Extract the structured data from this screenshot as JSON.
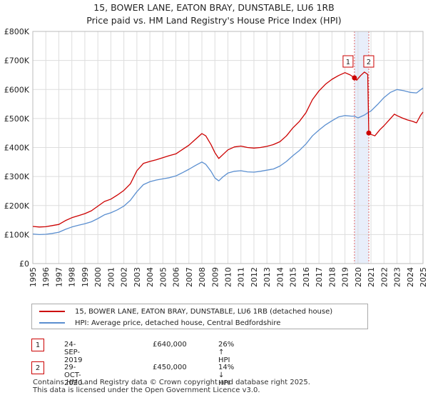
{
  "title_line1": "15, BOWER LANE, EATON BRAY, DUNSTABLE, LU6 1RB",
  "title_line2": "Price paid vs. HM Land Registry's House Price Index (HPI)",
  "colors": {
    "property": "#cc0000",
    "hpi": "#5b8fd0",
    "shade": "#e8eefa",
    "grid": "#dddddd"
  },
  "legend": {
    "property_label": "15, BOWER LANE, EATON BRAY, DUNSTABLE, LU6 1RB (detached house)",
    "hpi_label": "HPI: Average price, detached house, Central Bedfordshire"
  },
  "transactions": [
    {
      "num": "1",
      "date": "24-SEP-2019",
      "price": "£640,000",
      "hpi": "26% ↑ HPI"
    },
    {
      "num": "2",
      "date": "29-OCT-2020",
      "price": "£450,000",
      "hpi": "14% ↓ HPI"
    }
  ],
  "footer_line1": "Contains HM Land Registry data © Crown copyright and database right 2025.",
  "footer_line2": "This data is licensed under the Open Government Licence v3.0.",
  "chart_data": {
    "type": "line",
    "title": "15, BOWER LANE, EATON BRAY, DUNSTABLE, LU6 1RB — Price paid vs. HM Land Registry's House Price Index (HPI)",
    "xlabel": "",
    "ylabel": "",
    "xlim": [
      1995,
      2025
    ],
    "ylim": [
      0,
      800000
    ],
    "y_ticks": [
      {
        "value": 0,
        "label": "£0"
      },
      {
        "value": 100000,
        "label": "£100K"
      },
      {
        "value": 200000,
        "label": "£200K"
      },
      {
        "value": 300000,
        "label": "£300K"
      },
      {
        "value": 400000,
        "label": "£400K"
      },
      {
        "value": 500000,
        "label": "£500K"
      },
      {
        "value": 600000,
        "label": "£600K"
      },
      {
        "value": 700000,
        "label": "£700K"
      },
      {
        "value": 800000,
        "label": "£800K"
      }
    ],
    "x_ticks": [
      "1995",
      "1996",
      "1997",
      "1998",
      "1999",
      "2000",
      "2001",
      "2002",
      "2003",
      "2004",
      "2005",
      "2006",
      "2007",
      "2008",
      "2009",
      "2010",
      "2011",
      "2012",
      "2013",
      "2014",
      "2015",
      "2016",
      "2017",
      "2018",
      "2019",
      "2020",
      "2021",
      "2022",
      "2023",
      "2024",
      "2025"
    ],
    "grid": true,
    "shaded_ranges": [
      [
        2019.73,
        2020.83
      ]
    ],
    "series": [
      {
        "name": "15, BOWER LANE, EATON BRAY, DUNSTABLE, LU6 1RB (detached house)",
        "color": "#cc0000",
        "points": [
          [
            1995.0,
            128000
          ],
          [
            1995.5,
            126000
          ],
          [
            1996.0,
            127000
          ],
          [
            1996.5,
            131000
          ],
          [
            1997.0,
            135000
          ],
          [
            1997.5,
            148000
          ],
          [
            1998.0,
            158000
          ],
          [
            1998.5,
            165000
          ],
          [
            1999.0,
            172000
          ],
          [
            1999.5,
            182000
          ],
          [
            2000.0,
            198000
          ],
          [
            2000.5,
            214000
          ],
          [
            2001.0,
            222000
          ],
          [
            2001.5,
            236000
          ],
          [
            2002.0,
            252000
          ],
          [
            2002.5,
            275000
          ],
          [
            2003.0,
            320000
          ],
          [
            2003.5,
            345000
          ],
          [
            2004.0,
            352000
          ],
          [
            2004.5,
            358000
          ],
          [
            2005.0,
            365000
          ],
          [
            2005.5,
            372000
          ],
          [
            2006.0,
            378000
          ],
          [
            2006.5,
            393000
          ],
          [
            2007.0,
            408000
          ],
          [
            2007.5,
            428000
          ],
          [
            2008.0,
            448000
          ],
          [
            2008.3,
            440000
          ],
          [
            2008.7,
            410000
          ],
          [
            2009.0,
            382000
          ],
          [
            2009.3,
            362000
          ],
          [
            2009.6,
            375000
          ],
          [
            2010.0,
            392000
          ],
          [
            2010.5,
            402000
          ],
          [
            2011.0,
            405000
          ],
          [
            2011.5,
            400000
          ],
          [
            2012.0,
            398000
          ],
          [
            2012.5,
            400000
          ],
          [
            2013.0,
            404000
          ],
          [
            2013.5,
            410000
          ],
          [
            2014.0,
            420000
          ],
          [
            2014.5,
            440000
          ],
          [
            2015.0,
            468000
          ],
          [
            2015.5,
            490000
          ],
          [
            2016.0,
            520000
          ],
          [
            2016.5,
            565000
          ],
          [
            2017.0,
            595000
          ],
          [
            2017.5,
            618000
          ],
          [
            2018.0,
            635000
          ],
          [
            2018.5,
            648000
          ],
          [
            2019.0,
            658000
          ],
          [
            2019.4,
            650000
          ],
          [
            2019.73,
            640000
          ],
          [
            2019.9,
            632000
          ],
          [
            2020.2,
            648000
          ],
          [
            2020.5,
            660000
          ],
          [
            2020.75,
            652000
          ],
          [
            2020.83,
            450000
          ],
          [
            2021.0,
            445000
          ],
          [
            2021.3,
            440000
          ],
          [
            2021.7,
            462000
          ],
          [
            2022.0,
            475000
          ],
          [
            2022.4,
            495000
          ],
          [
            2022.8,
            515000
          ],
          [
            2023.0,
            510000
          ],
          [
            2023.4,
            502000
          ],
          [
            2023.8,
            495000
          ],
          [
            2024.2,
            490000
          ],
          [
            2024.5,
            485000
          ],
          [
            2024.8,
            510000
          ],
          [
            2025.0,
            522000
          ]
        ]
      },
      {
        "name": "HPI: Average price, detached house, Central Bedfordshire",
        "color": "#5b8fd0",
        "points": [
          [
            1995.0,
            102000
          ],
          [
            1995.5,
            100000
          ],
          [
            1996.0,
            101000
          ],
          [
            1996.5,
            104000
          ],
          [
            1997.0,
            108000
          ],
          [
            1997.5,
            118000
          ],
          [
            1998.0,
            126000
          ],
          [
            1998.5,
            132000
          ],
          [
            1999.0,
            137000
          ],
          [
            1999.5,
            144000
          ],
          [
            2000.0,
            155000
          ],
          [
            2000.5,
            168000
          ],
          [
            2001.0,
            175000
          ],
          [
            2001.5,
            185000
          ],
          [
            2002.0,
            198000
          ],
          [
            2002.5,
            218000
          ],
          [
            2003.0,
            248000
          ],
          [
            2003.5,
            272000
          ],
          [
            2004.0,
            282000
          ],
          [
            2004.5,
            288000
          ],
          [
            2005.0,
            292000
          ],
          [
            2005.5,
            296000
          ],
          [
            2006.0,
            302000
          ],
          [
            2006.5,
            313000
          ],
          [
            2007.0,
            325000
          ],
          [
            2007.5,
            338000
          ],
          [
            2008.0,
            350000
          ],
          [
            2008.3,
            342000
          ],
          [
            2008.7,
            318000
          ],
          [
            2009.0,
            295000
          ],
          [
            2009.3,
            285000
          ],
          [
            2009.6,
            298000
          ],
          [
            2010.0,
            312000
          ],
          [
            2010.5,
            318000
          ],
          [
            2011.0,
            320000
          ],
          [
            2011.5,
            316000
          ],
          [
            2012.0,
            315000
          ],
          [
            2012.5,
            318000
          ],
          [
            2013.0,
            322000
          ],
          [
            2013.5,
            326000
          ],
          [
            2014.0,
            336000
          ],
          [
            2014.5,
            352000
          ],
          [
            2015.0,
            372000
          ],
          [
            2015.5,
            390000
          ],
          [
            2016.0,
            412000
          ],
          [
            2016.5,
            440000
          ],
          [
            2017.0,
            460000
          ],
          [
            2017.5,
            478000
          ],
          [
            2018.0,
            492000
          ],
          [
            2018.5,
            505000
          ],
          [
            2019.0,
            510000
          ],
          [
            2019.5,
            508000
          ],
          [
            2019.73,
            508000
          ],
          [
            2020.0,
            502000
          ],
          [
            2020.5,
            512000
          ],
          [
            2020.83,
            522000
          ],
          [
            2021.0,
            526000
          ],
          [
            2021.5,
            548000
          ],
          [
            2022.0,
            572000
          ],
          [
            2022.5,
            590000
          ],
          [
            2023.0,
            600000
          ],
          [
            2023.5,
            596000
          ],
          [
            2024.0,
            590000
          ],
          [
            2024.5,
            588000
          ],
          [
            2025.0,
            605000
          ]
        ]
      }
    ],
    "markers": [
      {
        "label": "1",
        "x": 2019.73,
        "y": 640000
      },
      {
        "label": "2",
        "x": 2020.83,
        "y": 450000
      }
    ]
  }
}
